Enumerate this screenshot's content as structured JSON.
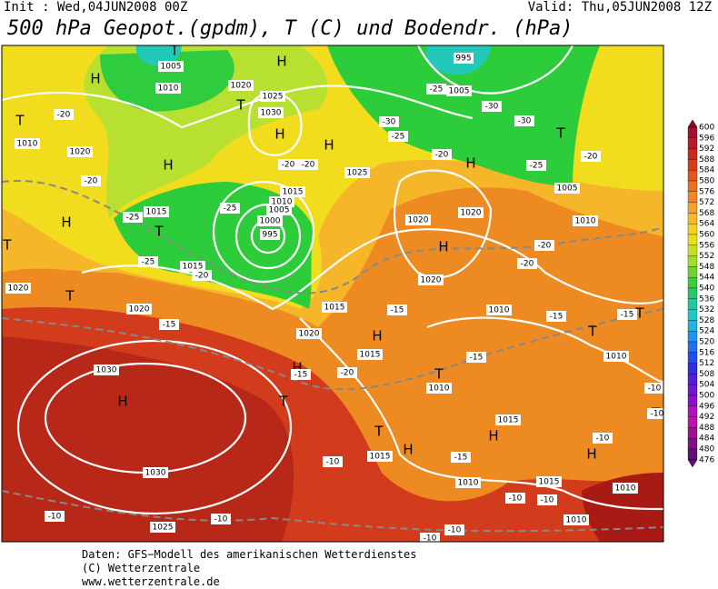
{
  "header": {
    "init": "Init : Wed,04JUN2008 00Z",
    "valid": "Valid: Thu,05JUN2008 12Z",
    "title": "500 hPa Geopot.(gpdm), T (C) und Bodendr. (hPa)"
  },
  "colorbar": {
    "labels": [
      "600",
      "596",
      "592",
      "588",
      "584",
      "580",
      "576",
      "572",
      "568",
      "564",
      "560",
      "556",
      "552",
      "548",
      "544",
      "540",
      "536",
      "532",
      "528",
      "524",
      "520",
      "516",
      "512",
      "508",
      "504",
      "500",
      "496",
      "492",
      "488",
      "484",
      "480",
      "476"
    ]
  },
  "map": {
    "pressure_centers": [
      "H",
      "H",
      "H",
      "H",
      "H",
      "T",
      "H",
      "T",
      "T",
      "T",
      "T",
      "T",
      "H",
      "H",
      "T",
      "T",
      "T",
      "T",
      "H",
      "H",
      "T",
      "H",
      "H",
      "H",
      "T",
      "H",
      "T"
    ],
    "isobar_labels": [
      "1005",
      "1010",
      "1020",
      "1025",
      "1030",
      "1015",
      "1010",
      "1005",
      "1000",
      "995",
      "1015",
      "1015",
      "1020",
      "1010",
      "1020",
      "1020",
      "1020",
      "1015",
      "1025",
      "1020",
      "1020",
      "1020",
      "1030",
      "1030",
      "1025",
      "995",
      "1005",
      "1005",
      "1010",
      "1010",
      "1010",
      "1015",
      "1010",
      "1015",
      "1015",
      "1010",
      "1015",
      "1010",
      "1010"
    ],
    "temperature_labels": [
      "-20",
      "-20",
      "-25",
      "-25",
      "-20",
      "-15",
      "-25",
      "-20",
      "-20",
      "-25",
      "-30",
      "-25",
      "-30",
      "-30",
      "-25",
      "-20",
      "-20",
      "-20",
      "-20",
      "-15",
      "-15",
      "-15",
      "-20",
      "-15",
      "-15",
      "-10",
      "-10",
      "-10",
      "-15",
      "-10",
      "-10",
      "-10",
      "-10",
      "-10",
      "-10",
      "-10"
    ]
  },
  "footer": {
    "lines": [
      "Daten: GFS−Modell des amerikanischen Wetterdienstes",
      "(C) Wetterzentrale",
      "www.wetterzentrale.de"
    ]
  }
}
